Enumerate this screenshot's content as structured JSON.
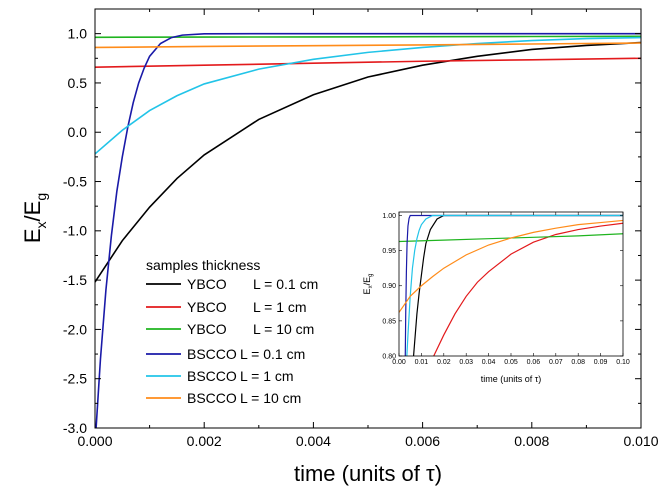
{
  "chart_data": [
    {
      "type": "line",
      "title": "",
      "xlabel": "time (units of τ)",
      "ylabel": "Ex/Eg",
      "ylabel_main": "E",
      "ylabel_sub1": "x",
      "ylabel_slash": "/E",
      "ylabel_sub2": "g",
      "xlim": [
        0,
        0.01
      ],
      "ylim": [
        -3.0,
        1.25
      ],
      "xticks": [
        "0.000",
        "0.002",
        "0.004",
        "0.006",
        "0.008",
        "0.010"
      ],
      "xtick_values": [
        0,
        0.002,
        0.004,
        0.006,
        0.008,
        0.01
      ],
      "yticks": [
        "-3.0",
        "-2.5",
        "-2.0",
        "-1.5",
        "-1.0",
        "-0.5",
        "0.0",
        "0.5",
        "1.0"
      ],
      "ytick_values": [
        -3.0,
        -2.5,
        -2.0,
        -1.5,
        -1.0,
        -0.5,
        0.0,
        0.5,
        1.0
      ],
      "legend_title": "samples thickness",
      "legend_position": "lower-left",
      "series": [
        {
          "name": "YBCO",
          "thickness": "L = 0.1 cm",
          "color": "#000000",
          "x": [
            0,
            0.0005,
            0.001,
            0.0015,
            0.002,
            0.003,
            0.004,
            0.005,
            0.006,
            0.007,
            0.008,
            0.009,
            0.01
          ],
          "y": [
            -1.52,
            -1.1,
            -0.76,
            -0.47,
            -0.23,
            0.13,
            0.38,
            0.56,
            0.68,
            0.77,
            0.84,
            0.88,
            0.91
          ]
        },
        {
          "name": "YBCO",
          "thickness": "L = 1 cm",
          "color": "#e31a1c",
          "x": [
            0,
            0.002,
            0.004,
            0.006,
            0.008,
            0.01
          ],
          "y": [
            0.66,
            0.68,
            0.7,
            0.72,
            0.735,
            0.75
          ]
        },
        {
          "name": "YBCO",
          "thickness": "L = 10 cm",
          "color": "#1fb41f",
          "x": [
            0,
            0.002,
            0.004,
            0.006,
            0.008,
            0.01
          ],
          "y": [
            0.963,
            0.965,
            0.967,
            0.969,
            0.971,
            0.973
          ]
        },
        {
          "name": "BSCCO",
          "thickness": "L = 0.1 cm",
          "color": "#1a1aa8",
          "x": [
            2e-05,
            0.0001,
            0.0002,
            0.0003,
            0.0004,
            0.0005,
            0.0006,
            0.0007,
            0.0008,
            0.0009,
            0.001,
            0.0012,
            0.0014,
            0.0016,
            0.002,
            0.003,
            0.006,
            0.01
          ],
          "y": [
            -3.0,
            -2.3,
            -1.6,
            -1.05,
            -0.6,
            -0.25,
            0.05,
            0.3,
            0.5,
            0.65,
            0.77,
            0.9,
            0.96,
            0.985,
            0.998,
            1.0,
            1.0,
            1.0
          ]
        },
        {
          "name": "BSCCO",
          "thickness": "L = 1 cm",
          "color": "#22c4e8",
          "x": [
            0,
            0.0005,
            0.001,
            0.0015,
            0.002,
            0.003,
            0.004,
            0.005,
            0.006,
            0.007,
            0.008,
            0.009,
            0.01
          ],
          "y": [
            -0.22,
            0.02,
            0.22,
            0.37,
            0.49,
            0.64,
            0.74,
            0.81,
            0.86,
            0.9,
            0.93,
            0.95,
            0.96
          ]
        },
        {
          "name": "BSCCO",
          "thickness": "L = 10 cm",
          "color": "#ff8c1a",
          "x": [
            0,
            0.002,
            0.004,
            0.006,
            0.008,
            0.01
          ],
          "y": [
            0.86,
            0.87,
            0.878,
            0.886,
            0.895,
            0.905
          ]
        }
      ]
    },
    {
      "type": "line",
      "title": "",
      "xlabel": "time (units of τ)",
      "ylabel": "Ex/Eg",
      "ylabel_main": "E",
      "ylabel_sub1": "x",
      "ylabel_slash": "/E",
      "ylabel_sub2": "g",
      "xlim": [
        0,
        0.1
      ],
      "ylim": [
        0.8,
        1.005
      ],
      "xticks": [
        "0.00",
        "0.01",
        "0.02",
        "0.03",
        "0.04",
        "0.05",
        "0.06",
        "0.07",
        "0.08",
        "0.09",
        "0.10"
      ],
      "xtick_values": [
        0,
        0.01,
        0.02,
        0.03,
        0.04,
        0.05,
        0.06,
        0.07,
        0.08,
        0.09,
        0.1
      ],
      "yticks": [
        "0.80",
        "0.85",
        "0.90",
        "0.95",
        "1.00"
      ],
      "ytick_values": [
        0.8,
        0.85,
        0.9,
        0.95,
        1.0
      ],
      "series": [
        {
          "color": "#000000",
          "x": [
            0.0065,
            0.007,
            0.008,
            0.009,
            0.01,
            0.011,
            0.012,
            0.014,
            0.017,
            0.02,
            0.1
          ],
          "y": [
            0.8,
            0.82,
            0.86,
            0.89,
            0.915,
            0.94,
            0.96,
            0.98,
            0.995,
            1.0,
            1.0
          ]
        },
        {
          "color": "#e31a1c",
          "x": [
            0.0155,
            0.02,
            0.025,
            0.03,
            0.035,
            0.04,
            0.05,
            0.06,
            0.07,
            0.08,
            0.09,
            0.1
          ],
          "y": [
            0.8,
            0.83,
            0.86,
            0.885,
            0.905,
            0.92,
            0.945,
            0.962,
            0.973,
            0.98,
            0.985,
            0.989
          ]
        },
        {
          "color": "#1fb41f",
          "x": [
            0,
            0.02,
            0.04,
            0.06,
            0.08,
            0.1
          ],
          "y": [
            0.963,
            0.965,
            0.967,
            0.969,
            0.971,
            0.974
          ]
        },
        {
          "color": "#1a1aa8",
          "x": [
            0.0028,
            0.003,
            0.0033,
            0.0036,
            0.004,
            0.0045,
            0.005,
            0.006,
            0.1
          ],
          "y": [
            0.8,
            0.86,
            0.92,
            0.96,
            0.985,
            0.996,
            1.0,
            1.0,
            1.0
          ]
        },
        {
          "color": "#22c4e8",
          "x": [
            0.0035,
            0.004,
            0.005,
            0.006,
            0.007,
            0.008,
            0.009,
            0.01,
            0.012,
            0.015,
            0.1
          ],
          "y": [
            0.8,
            0.83,
            0.885,
            0.925,
            0.95,
            0.967,
            0.979,
            0.987,
            0.995,
            1.0,
            1.0
          ]
        },
        {
          "color": "#ff8c1a",
          "x": [
            0,
            0.005,
            0.01,
            0.015,
            0.02,
            0.03,
            0.04,
            0.05,
            0.06,
            0.07,
            0.08,
            0.09,
            0.1
          ],
          "y": [
            0.862,
            0.885,
            0.9,
            0.913,
            0.925,
            0.944,
            0.958,
            0.968,
            0.976,
            0.982,
            0.987,
            0.99,
            0.993
          ]
        }
      ]
    }
  ]
}
